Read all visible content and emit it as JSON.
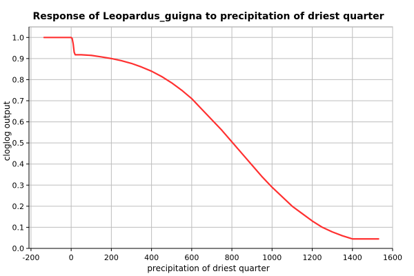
{
  "chart_data": {
    "type": "line",
    "title": "Response of Leopardus_guigna to precipitation of driest quarter",
    "xlabel": "precipitation of driest quarter",
    "ylabel": "cloglog output",
    "xlim": [
      -210,
      1600
    ],
    "ylim": [
      0,
      1.05
    ],
    "xticks": [
      "-200",
      "0",
      "200",
      "400",
      "600",
      "800",
      "1000",
      "1200",
      "1400",
      "1600"
    ],
    "yticks": [
      "0.0",
      "0.1",
      "0.2",
      "0.3",
      "0.4",
      "0.5",
      "0.6",
      "0.7",
      "0.8",
      "0.9",
      "1.0"
    ],
    "grid": true,
    "series_color": "#ff3030",
    "series": [
      {
        "x": [
          -135,
          0,
          5,
          10,
          15,
          20,
          50,
          100,
          150,
          200,
          250,
          300,
          350,
          400,
          450,
          500,
          550,
          600,
          650,
          700,
          750,
          800,
          850,
          900,
          950,
          1000,
          1050,
          1100,
          1150,
          1200,
          1250,
          1300,
          1350,
          1400,
          1450,
          1500,
          1530
        ],
        "y": [
          1.0,
          1.0,
          0.995,
          0.97,
          0.93,
          0.918,
          0.918,
          0.915,
          0.908,
          0.9,
          0.89,
          0.877,
          0.86,
          0.84,
          0.815,
          0.785,
          0.75,
          0.71,
          0.66,
          0.61,
          0.56,
          0.505,
          0.45,
          0.395,
          0.34,
          0.29,
          0.245,
          0.2,
          0.165,
          0.13,
          0.1,
          0.078,
          0.06,
          0.045,
          0.045,
          0.045,
          0.045
        ]
      }
    ]
  }
}
